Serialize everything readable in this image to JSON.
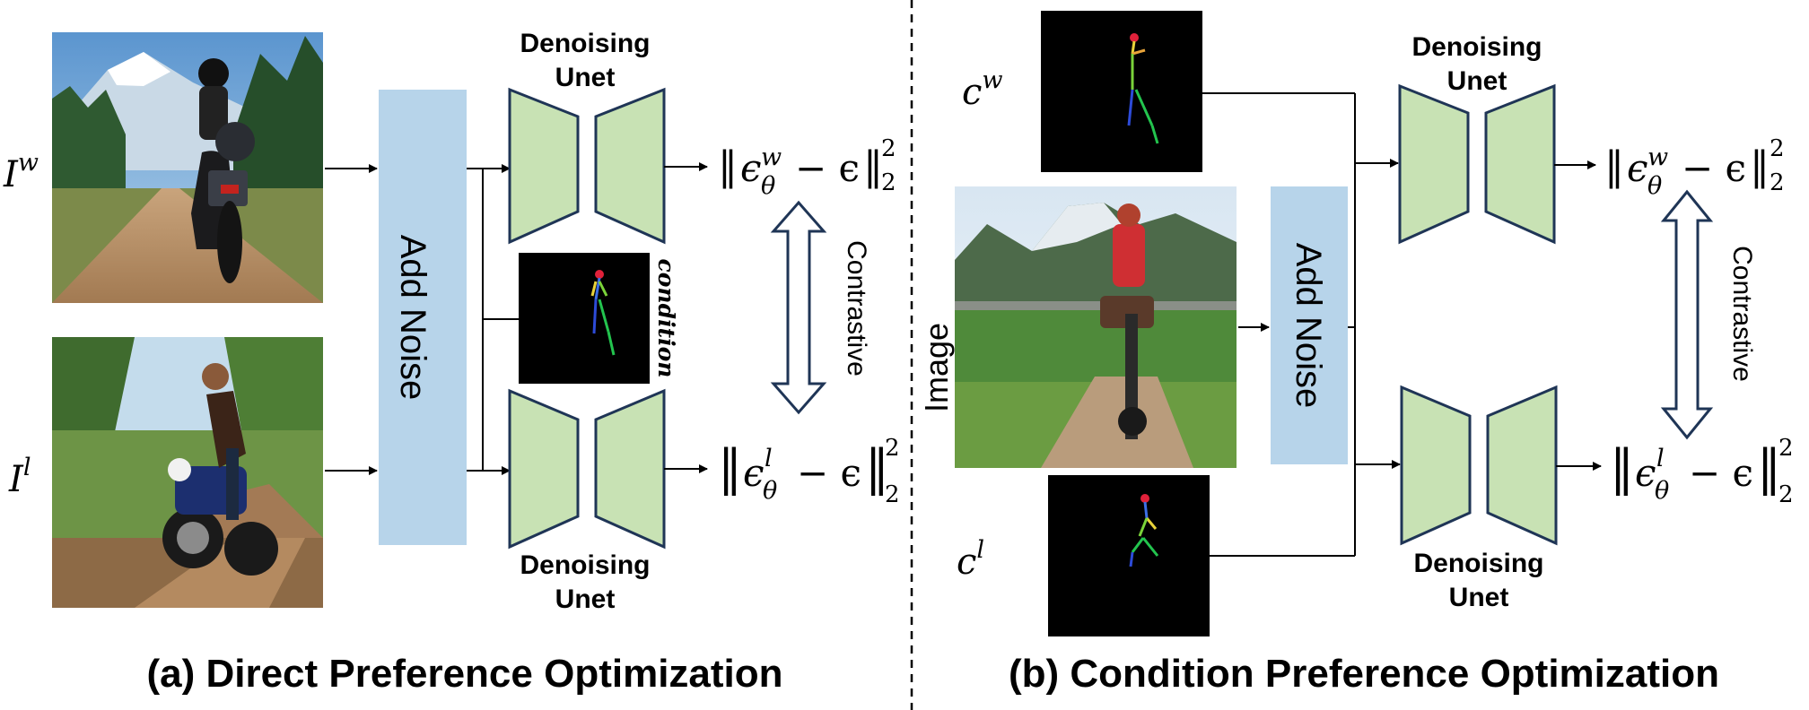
{
  "panel_a": {
    "caption": "(a) Direct Preference Optimization",
    "input_winner": {
      "base": "I",
      "sup": "w"
    },
    "input_loser": {
      "base": "I",
      "sup": "l"
    },
    "add_noise": "Add Noise",
    "unet_top": {
      "line1": "Denoising",
      "line2": "Unet"
    },
    "unet_bottom": {
      "line1": "Denoising",
      "line2": "Unet"
    },
    "condition_label": "condition",
    "contrastive": "Contrastive",
    "loss_winner": {
      "eps": "ϵ",
      "theta": "θ",
      "sup": "w",
      "minus": "− ϵ",
      "norm_sub": "2",
      "norm_sup": "2"
    },
    "loss_loser": {
      "eps": "ϵ",
      "theta": "θ",
      "sup": "l",
      "minus": "− ϵ",
      "norm_sub": "2",
      "norm_sup": "2"
    }
  },
  "panel_b": {
    "caption": "(b) Condition Preference Optimization",
    "cond_winner": {
      "base": "c",
      "sup": "w"
    },
    "cond_loser": {
      "base": "c",
      "sup": "l"
    },
    "image_label": "Image",
    "add_noise": "Add Noise",
    "unet_top": {
      "line1": "Denoising",
      "line2": "Unet"
    },
    "unet_bottom": {
      "line1": "Denoising",
      "line2": "Unet"
    },
    "contrastive": "Contrastive",
    "loss_winner": {
      "eps": "ϵ",
      "theta": "θ",
      "sup": "w",
      "minus": "− ϵ",
      "norm_sub": "2",
      "norm_sup": "2"
    },
    "loss_loser": {
      "eps": "ϵ",
      "theta": "θ",
      "sup": "l",
      "minus": "− ϵ",
      "norm_sub": "2",
      "norm_sup": "2"
    }
  },
  "colors": {
    "noise_box": "#b7d4ea",
    "unet_fill": "#c8e2b4",
    "unet_stroke": "#1f3556",
    "pose_background": "#000000"
  }
}
